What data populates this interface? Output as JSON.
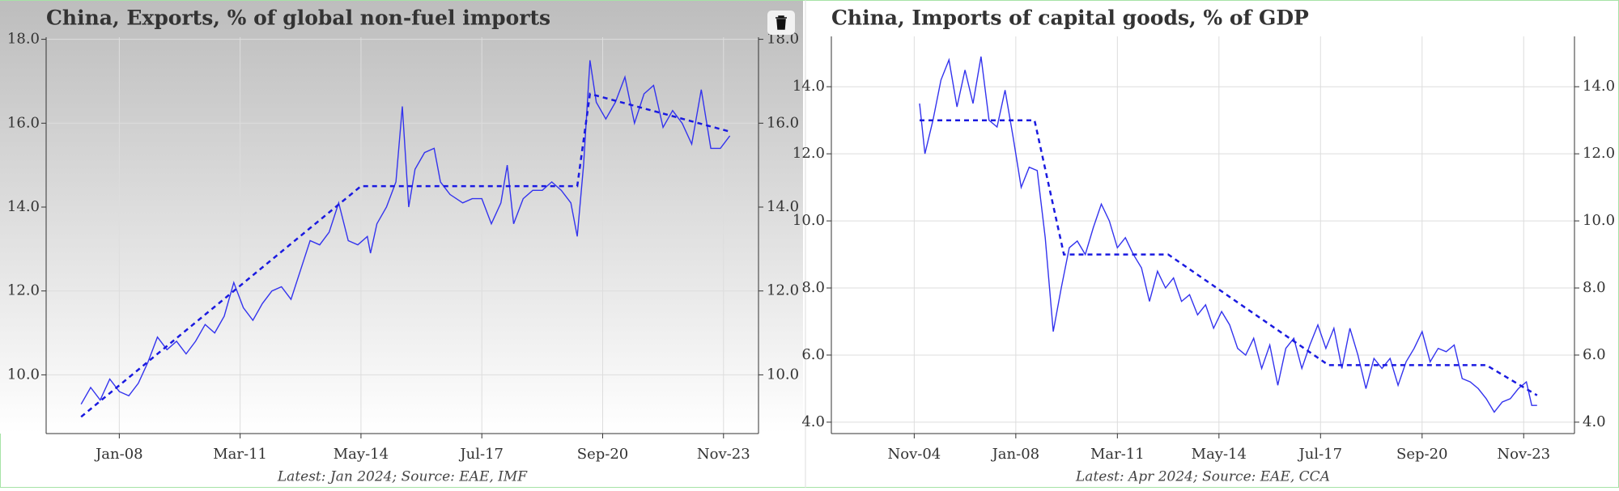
{
  "chart_data": [
    {
      "type": "line",
      "title": "China, Exports, % of global non-fuel imports",
      "footnote": "Latest: Jan 2024; Source: EAE, IMF",
      "background": "gradient",
      "xlim": [
        "2006-02",
        "2024-10"
      ],
      "xticks": [
        {
          "value": "2008-01",
          "label": "Jan-08"
        },
        {
          "value": "2011-03",
          "label": "Mar-11"
        },
        {
          "value": "2014-05",
          "label": "May-14"
        },
        {
          "value": "2017-07",
          "label": "Jul-17"
        },
        {
          "value": "2020-09",
          "label": "Sep-20"
        },
        {
          "value": "2023-11",
          "label": "Nov-23"
        }
      ],
      "ylim": [
        8.6,
        18.05
      ],
      "yticks": [
        {
          "value": 10,
          "label": "10.0"
        },
        {
          "value": 12,
          "label": "12.0"
        },
        {
          "value": 14,
          "label": "14.0"
        },
        {
          "value": 16,
          "label": "16.0"
        },
        {
          "value": 18,
          "label": "18.0"
        }
      ],
      "grid": true,
      "series": [
        {
          "color": "#3333ee",
          "dashed": false,
          "x": [
            "2007-01",
            "2007-04",
            "2007-07",
            "2007-10",
            "2008-01",
            "2008-04",
            "2008-07",
            "2008-10",
            "2009-01",
            "2009-04",
            "2009-07",
            "2009-10",
            "2010-01",
            "2010-04",
            "2010-07",
            "2010-10",
            "2011-01",
            "2011-04",
            "2011-07",
            "2011-10",
            "2012-01",
            "2012-04",
            "2012-07",
            "2012-10",
            "2013-01",
            "2013-04",
            "2013-07",
            "2013-10",
            "2014-01",
            "2014-04",
            "2014-07",
            "2014-08",
            "2014-10",
            "2015-01",
            "2015-04",
            "2015-06",
            "2015-08",
            "2015-10",
            "2016-01",
            "2016-04",
            "2016-06",
            "2016-09",
            "2017-01",
            "2017-04",
            "2017-07",
            "2017-10",
            "2018-01",
            "2018-03",
            "2018-05",
            "2018-08",
            "2018-11",
            "2019-02",
            "2019-05",
            "2019-08",
            "2019-11",
            "2020-01",
            "2020-03",
            "2020-05",
            "2020-07",
            "2020-10",
            "2021-01",
            "2021-04",
            "2021-07",
            "2021-10",
            "2022-01",
            "2022-04",
            "2022-07",
            "2022-10",
            "2023-01",
            "2023-04",
            "2023-07",
            "2023-10",
            "2024-01"
          ],
          "values": [
            9.3,
            9.7,
            9.4,
            9.9,
            9.6,
            9.5,
            9.8,
            10.3,
            10.9,
            10.6,
            10.8,
            10.5,
            10.8,
            11.2,
            11.0,
            11.4,
            12.2,
            11.6,
            11.3,
            11.7,
            12.0,
            12.1,
            11.8,
            12.5,
            13.2,
            13.1,
            13.4,
            14.1,
            13.2,
            13.1,
            13.3,
            12.9,
            13.6,
            14.0,
            14.6,
            16.4,
            14.0,
            14.9,
            15.3,
            15.4,
            14.6,
            14.3,
            14.1,
            14.2,
            14.2,
            13.6,
            14.1,
            15.0,
            13.6,
            14.2,
            14.4,
            14.4,
            14.6,
            14.4,
            14.1,
            13.3,
            15.0,
            17.5,
            16.5,
            16.1,
            16.5,
            17.1,
            16.0,
            16.7,
            16.9,
            15.9,
            16.3,
            16.0,
            15.5,
            16.8,
            15.4,
            15.4,
            15.7
          ]
        },
        {
          "color": "#1a1ae0",
          "dashed": true,
          "x": [
            "2007-01",
            "2014-05",
            "2020-01",
            "2020-05",
            "2024-01"
          ],
          "values": [
            9.0,
            14.5,
            14.5,
            16.7,
            15.8
          ]
        }
      ]
    },
    {
      "type": "line",
      "title": "China, Imports of capital goods, % of GDP",
      "footnote": "Latest: Apr 2024; Source: EAE, CCA",
      "background": "white",
      "xlim": [
        "2002-04",
        "2025-06"
      ],
      "xticks": [
        {
          "value": "2004-11",
          "label": "Nov-04"
        },
        {
          "value": "2008-01",
          "label": "Jan-08"
        },
        {
          "value": "2011-03",
          "label": "Mar-11"
        },
        {
          "value": "2014-05",
          "label": "May-14"
        },
        {
          "value": "2017-07",
          "label": "Jul-17"
        },
        {
          "value": "2020-09",
          "label": "Sep-20"
        },
        {
          "value": "2023-11",
          "label": "Nov-23"
        }
      ],
      "ylim": [
        3.66,
        15.5
      ],
      "yticks": [
        {
          "value": 4,
          "label": "4.0"
        },
        {
          "value": 6,
          "label": "6.0"
        },
        {
          "value": 8,
          "label": "8.0"
        },
        {
          "value": 10,
          "label": "10.0"
        },
        {
          "value": 12,
          "label": "12.0"
        },
        {
          "value": 14,
          "label": "14.0"
        }
      ],
      "grid": true,
      "series": [
        {
          "color": "#3333ee",
          "dashed": false,
          "x": [
            "2005-01",
            "2005-03",
            "2005-06",
            "2005-09",
            "2005-12",
            "2006-03",
            "2006-06",
            "2006-09",
            "2006-12",
            "2007-03",
            "2007-06",
            "2007-09",
            "2007-12",
            "2008-03",
            "2008-06",
            "2008-09",
            "2008-12",
            "2009-03",
            "2009-06",
            "2009-09",
            "2009-12",
            "2010-03",
            "2010-06",
            "2010-09",
            "2010-12",
            "2011-03",
            "2011-06",
            "2011-09",
            "2011-12",
            "2012-03",
            "2012-06",
            "2012-09",
            "2012-12",
            "2013-03",
            "2013-06",
            "2013-09",
            "2013-12",
            "2014-03",
            "2014-06",
            "2014-09",
            "2014-12",
            "2015-03",
            "2015-06",
            "2015-09",
            "2015-12",
            "2016-03",
            "2016-06",
            "2016-09",
            "2016-12",
            "2017-03",
            "2017-06",
            "2017-09",
            "2017-12",
            "2018-03",
            "2018-06",
            "2018-09",
            "2018-12",
            "2019-03",
            "2019-06",
            "2019-09",
            "2019-12",
            "2020-03",
            "2020-06",
            "2020-09",
            "2020-12",
            "2021-03",
            "2021-06",
            "2021-09",
            "2021-12",
            "2022-03",
            "2022-06",
            "2022-09",
            "2022-12",
            "2023-03",
            "2023-06",
            "2023-09",
            "2023-12",
            "2024-02",
            "2024-04"
          ],
          "values": [
            13.5,
            12.0,
            13.0,
            14.2,
            14.8,
            13.4,
            14.5,
            13.5,
            14.9,
            13.0,
            12.8,
            13.9,
            12.5,
            11.0,
            11.6,
            11.5,
            9.5,
            6.7,
            8.0,
            9.2,
            9.4,
            9.0,
            9.8,
            10.5,
            10.0,
            9.2,
            9.5,
            9.0,
            8.6,
            7.6,
            8.5,
            8.0,
            8.3,
            7.6,
            7.8,
            7.2,
            7.5,
            6.8,
            7.3,
            6.9,
            6.2,
            6.0,
            6.5,
            5.6,
            6.3,
            5.1,
            6.2,
            6.5,
            5.6,
            6.3,
            6.9,
            6.2,
            6.8,
            5.6,
            6.8,
            6.0,
            5.0,
            5.9,
            5.6,
            5.9,
            5.1,
            5.8,
            6.2,
            6.7,
            5.8,
            6.2,
            6.1,
            6.3,
            5.3,
            5.2,
            5.0,
            4.7,
            4.3,
            4.6,
            4.7,
            5.0,
            5.2,
            4.5,
            4.5
          ]
        },
        {
          "color": "#1a1ae0",
          "dashed": true,
          "x": [
            "2005-01",
            "2008-08",
            "2009-07",
            "2012-10",
            "2017-10",
            "2022-09",
            "2024-04"
          ],
          "values": [
            13.0,
            13.0,
            9.0,
            9.0,
            5.7,
            5.7,
            4.8
          ]
        }
      ]
    }
  ]
}
